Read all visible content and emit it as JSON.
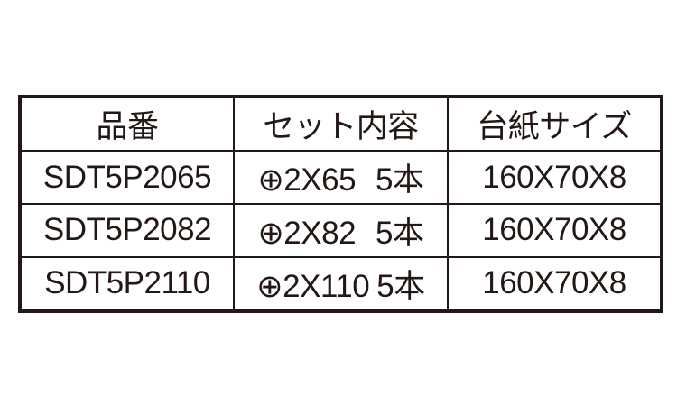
{
  "table": {
    "headers": [
      "品番",
      "セット内容",
      "台紙サイズ"
    ],
    "rows": [
      {
        "part_no": "SDT5P2065",
        "bit": "⊕2X65",
        "qty": "5本",
        "card_size": "160X70X8"
      },
      {
        "part_no": "SDT5P2082",
        "bit": "⊕2X82",
        "qty": "5本",
        "card_size": "160X70X8"
      },
      {
        "part_no": "SDT5P2110",
        "bit": "⊕2X110",
        "qty": "5本",
        "card_size": "160X70X8"
      }
    ]
  }
}
